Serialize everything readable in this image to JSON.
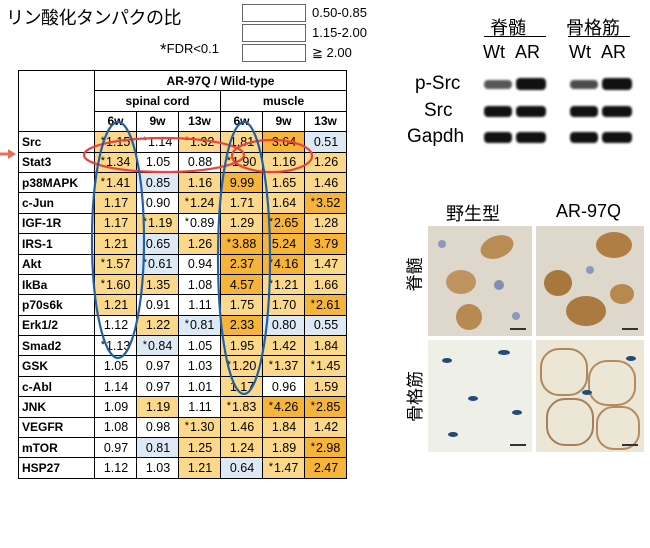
{
  "title": "リン酸化タンパクの比",
  "legend": [
    {
      "label": "0.50-0.85",
      "color": "#ddeaf6"
    },
    {
      "label": "1.15-2.00",
      "color": "#fcd98a"
    },
    {
      "label": "≧ 2.00",
      "color": "#f7b43a"
    }
  ],
  "fdr_note": {
    "star": "*",
    "text": "FDR<0.1"
  },
  "table": {
    "header": "AR-97Q / Wild-type",
    "groups": [
      "spinal cord",
      "muscle"
    ],
    "timepoints": [
      "6w",
      "9w",
      "13w",
      "6w",
      "9w",
      "13w"
    ],
    "rows": [
      {
        "label": "Src",
        "cells": [
          [
            "*",
            "1.15",
            2
          ],
          [
            "*",
            "1.14",
            0
          ],
          [
            "*",
            "1.32",
            2
          ],
          [
            "",
            "1.81",
            2
          ],
          [
            "",
            "3.64",
            3
          ],
          [
            "",
            "0.51",
            1
          ]
        ]
      },
      {
        "label": "Stat3",
        "cells": [
          [
            "*",
            "1.34",
            2
          ],
          [
            "",
            "1.05",
            0
          ],
          [
            "",
            "0.88",
            0
          ],
          [
            "*",
            "1.90",
            2
          ],
          [
            "",
            "1.16",
            2
          ],
          [
            "",
            "1.26",
            2
          ]
        ]
      },
      {
        "label": "p38MAPK",
        "cells": [
          [
            "*",
            "1.41",
            2
          ],
          [
            "",
            "0.85",
            1
          ],
          [
            "",
            "1.16",
            2
          ],
          [
            "",
            "9.99",
            3
          ],
          [
            "",
            "1.65",
            2
          ],
          [
            "",
            "1.46",
            2
          ]
        ]
      },
      {
        "label": "c-Jun",
        "cells": [
          [
            "",
            "1.17",
            2
          ],
          [
            "",
            "0.90",
            0
          ],
          [
            "*",
            "1.24",
            2
          ],
          [
            "",
            "1.71",
            2
          ],
          [
            "",
            "1.64",
            2
          ],
          [
            "*",
            "3.52",
            3
          ]
        ]
      },
      {
        "label": "IGF-1R",
        "cells": [
          [
            "",
            "1.17",
            2
          ],
          [
            "*",
            "1.19",
            2
          ],
          [
            "*",
            "0.89",
            0
          ],
          [
            "",
            "1.29",
            2
          ],
          [
            "*",
            "2.65",
            3
          ],
          [
            "",
            "1.28",
            2
          ]
        ]
      },
      {
        "label": "IRS-1",
        "cells": [
          [
            "",
            "1.21",
            2
          ],
          [
            "",
            "0.65",
            1
          ],
          [
            "",
            "1.26",
            2
          ],
          [
            "*",
            "3.88",
            3
          ],
          [
            "",
            "5.24",
            3
          ],
          [
            "",
            "3.79",
            3
          ]
        ]
      },
      {
        "label": "Akt",
        "cells": [
          [
            "*",
            "1.57",
            2
          ],
          [
            "*",
            "0.61",
            1
          ],
          [
            "",
            "0.94",
            0
          ],
          [
            "",
            "2.37",
            3
          ],
          [
            "*",
            "4.16",
            3
          ],
          [
            "",
            "1.47",
            2
          ]
        ]
      },
      {
        "label": "IkBa",
        "cells": [
          [
            "*",
            "1.60",
            2
          ],
          [
            "",
            "1.35",
            2
          ],
          [
            "",
            "1.08",
            0
          ],
          [
            "",
            "4.57",
            3
          ],
          [
            "*",
            "1.21",
            2
          ],
          [
            "",
            "1.66",
            2
          ]
        ]
      },
      {
        "label": "p70s6k",
        "cells": [
          [
            "",
            "1.21",
            2
          ],
          [
            "",
            "0.91",
            0
          ],
          [
            "",
            "1.11",
            0
          ],
          [
            "",
            "1.75",
            2
          ],
          [
            "",
            "1.70",
            2
          ],
          [
            "*",
            "2.61",
            3
          ]
        ]
      },
      {
        "label": "Erk1/2",
        "cells": [
          [
            "",
            "1.12",
            0
          ],
          [
            "",
            "1.22",
            2
          ],
          [
            "*",
            "0.81",
            1
          ],
          [
            "",
            "2.33",
            3
          ],
          [
            "",
            "0.80",
            1
          ],
          [
            "",
            "0.55",
            1
          ]
        ]
      },
      {
        "label": "Smad2",
        "cells": [
          [
            "*",
            "1.13",
            0
          ],
          [
            "*",
            "0.84",
            1
          ],
          [
            "",
            "1.05",
            0
          ],
          [
            "",
            "1.95",
            2
          ],
          [
            "",
            "1.42",
            2
          ],
          [
            "",
            "1.84",
            2
          ]
        ]
      },
      {
        "label": "GSK",
        "cells": [
          [
            "",
            "1.05",
            0
          ],
          [
            "",
            "0.97",
            0
          ],
          [
            "",
            "1.03",
            0
          ],
          [
            "*",
            "1.20",
            2
          ],
          [
            "*",
            "1.37",
            2
          ],
          [
            "*",
            "1.45",
            2
          ]
        ]
      },
      {
        "label": "c-Abl",
        "cells": [
          [
            "",
            "1.14",
            0
          ],
          [
            "",
            "0.97",
            0
          ],
          [
            "",
            "1.01",
            0
          ],
          [
            "",
            "1.17",
            2
          ],
          [
            "",
            "0.96",
            0
          ],
          [
            "",
            "1.59",
            2
          ]
        ]
      },
      {
        "label": "JNK",
        "cells": [
          [
            "",
            "1.09",
            0
          ],
          [
            "",
            "1.19",
            2
          ],
          [
            "",
            "1.11",
            0
          ],
          [
            "*",
            "1.83",
            2
          ],
          [
            "*",
            "4.26",
            3
          ],
          [
            "*",
            "2.85",
            3
          ]
        ]
      },
      {
        "label": "VEGFR",
        "cells": [
          [
            "",
            "1.08",
            0
          ],
          [
            "",
            "0.98",
            0
          ],
          [
            "*",
            "1.30",
            2
          ],
          [
            "",
            "1.46",
            2
          ],
          [
            "",
            "1.84",
            2
          ],
          [
            "",
            "1.42",
            2
          ]
        ]
      },
      {
        "label": "mTOR",
        "cells": [
          [
            "",
            "0.97",
            0
          ],
          [
            "",
            "0.81",
            1
          ],
          [
            "",
            "1.25",
            2
          ],
          [
            "",
            "1.24",
            2
          ],
          [
            "",
            "1.89",
            2
          ],
          [
            "*",
            "2.98",
            3
          ]
        ]
      },
      {
        "label": "HSP27",
        "cells": [
          [
            "",
            "1.12",
            0
          ],
          [
            "",
            "1.03",
            0
          ],
          [
            "",
            "1.21",
            2
          ],
          [
            "",
            "0.64",
            1
          ],
          [
            "*",
            "1.47",
            2
          ],
          [
            "",
            "2.47",
            3
          ]
        ]
      }
    ]
  },
  "western_blot": {
    "tissues": [
      "脊髄",
      "骨格筋"
    ],
    "lanes": [
      "Wt",
      "AR",
      "Wt",
      "AR"
    ],
    "rows": [
      "p-Src",
      "Src",
      "Gapdh"
    ]
  },
  "histology": {
    "columns": [
      "野生型",
      "AR-97Q"
    ],
    "rows": [
      "脊髄",
      "骨格筋"
    ]
  }
}
